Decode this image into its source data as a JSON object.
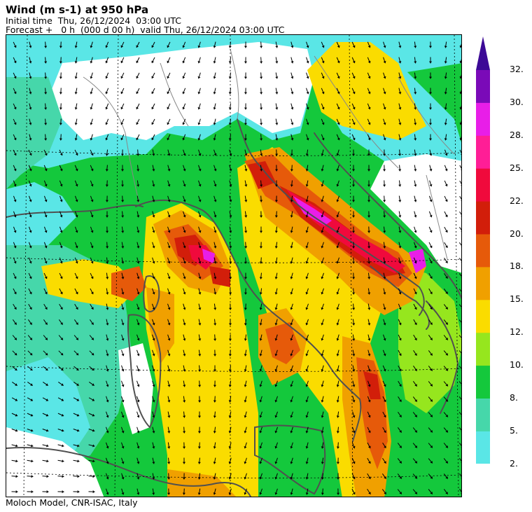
{
  "title": "Wind (m s-1) at 950 hPa",
  "initial_time": "Initial time  Thu, 26/12/2024  03:00 UTC",
  "forecast": "Forecast +   0 h  (000 d 00 h)  valid Thu, 26/12/2024 03:00 UTC",
  "footer": "Moloch Model, CNR-ISAC, Italy",
  "colorbar": {
    "labels": [
      "32.",
      "30.",
      "28.",
      "25.",
      "22.",
      "20.",
      "18.",
      "15.",
      "12.",
      "10.",
      "8.",
      "5.",
      "2."
    ],
    "colors": [
      "#7a0ab8",
      "#e81ee8",
      "#ff1e96",
      "#f00a3c",
      "#d21e0a",
      "#e65a0a",
      "#f0a000",
      "#fadc00",
      "#96e61e",
      "#14c83c",
      "#46d7aa",
      "#5ae6e6"
    ]
  },
  "map": {
    "field": "wind speed",
    "level": "950 hPa",
    "units": "m s-1",
    "palette": {
      "land_white": "#ffffff",
      "calm": "#5ae6e6",
      "light": "#46d7aa",
      "moderate": "#14c83c",
      "fresh": "#96e61e",
      "strong": "#fadc00",
      "gale": "#f0a000",
      "severe": "#e65a0a",
      "storm": "#d21e0a",
      "violent": "#f00a3c",
      "extreme": "#e81ee8",
      "coast": "#505050",
      "border": "#888888",
      "arrow": "#000000"
    }
  }
}
